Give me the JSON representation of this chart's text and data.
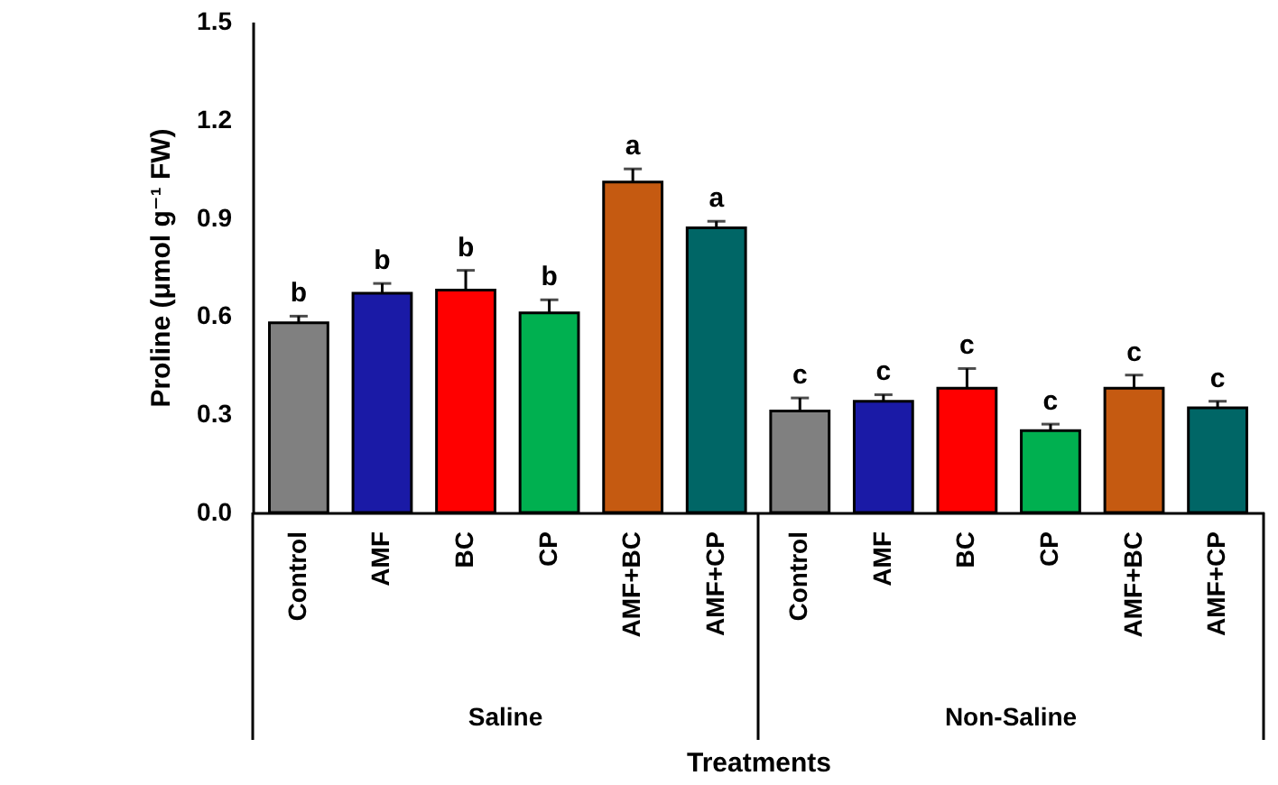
{
  "chart_data": {
    "type": "bar",
    "xlabel": "Treatments",
    "ylabel": "Proline (μmol g⁻¹ FW)",
    "categories": [
      "Control",
      "AMF",
      "BC",
      "CP",
      "AMF+BC",
      "AMF+CP",
      "Control",
      "AMF",
      "BC",
      "CP",
      "AMF+BC",
      "AMF+CP"
    ],
    "values": [
      0.58,
      0.67,
      0.68,
      0.61,
      1.01,
      0.87,
      0.31,
      0.34,
      0.38,
      0.25,
      0.38,
      0.32
    ],
    "errors": [
      0.02,
      0.03,
      0.06,
      0.04,
      0.04,
      0.02,
      0.04,
      0.02,
      0.06,
      0.02,
      0.04,
      0.02
    ],
    "colors": [
      "#808080",
      "#1a1aa6",
      "#ff0000",
      "#00b050",
      "#c55a11",
      "#006666",
      "#808080",
      "#1a1aa6",
      "#ff0000",
      "#00b050",
      "#c55a11",
      "#006666"
    ],
    "value_labels": [
      "b",
      "b",
      "b",
      "b",
      "a",
      "a",
      "c",
      "c",
      "c",
      "c",
      "c",
      "c"
    ],
    "annotations": [
      "Saline",
      "Non-Saline"
    ],
    "ylim": [
      0,
      1.5
    ],
    "yticks": [
      {
        "value": 0,
        "label": "0.0"
      },
      0.3,
      0.6,
      0.9,
      1.2,
      1.5
    ],
    "grid": false
  }
}
